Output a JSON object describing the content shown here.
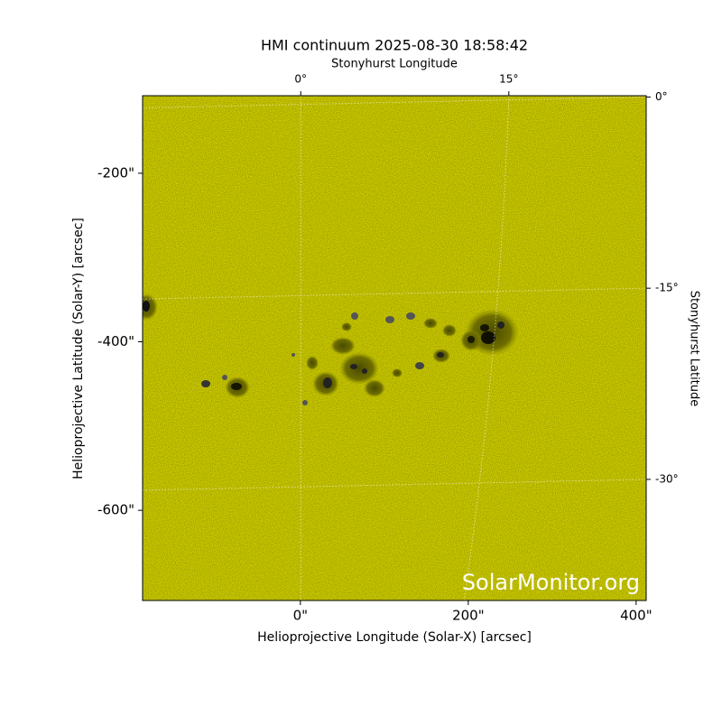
{
  "chart_data": {
    "type": "image",
    "title": "HMI continuum 2025-08-30 18:58:42",
    "xlabel": "Helioprojective Longitude (Solar-X) [arcsec]",
    "ylabel": "Helioprojective Latitude (Solar-Y) [arcsec]",
    "x2label": "Stonyhurst Longitude",
    "y2label": "Stonyhurst Latitude",
    "annotation": "SolarMonitor.org",
    "color": "#c9c800",
    "xlim": [
      -188,
      412
    ],
    "ylim": [
      -707,
      -108
    ],
    "xticks": [
      {
        "value": 0,
        "label": "0\""
      },
      {
        "value": 200,
        "label": "200\""
      },
      {
        "value": 400,
        "label": "400\""
      }
    ],
    "yticks": [
      {
        "value": -200,
        "label": "-200\""
      },
      {
        "value": -400,
        "label": "-400\""
      },
      {
        "value": -600,
        "label": "-600\""
      }
    ],
    "x2lim": [
      -11.4,
      24.9
    ],
    "x2ticks": [
      {
        "value": 0,
        "label": "0°"
      },
      {
        "value": 15,
        "label": "15°"
      }
    ],
    "y2lim": [
      -39.5,
      0.1
    ],
    "y2ticks": [
      {
        "value": 0,
        "label": "0°"
      },
      {
        "value": -15,
        "label": "-15°"
      },
      {
        "value": -30,
        "label": "-30°"
      }
    ]
  }
}
